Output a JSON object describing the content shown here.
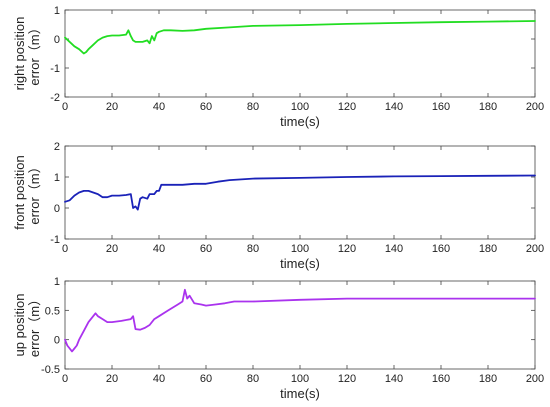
{
  "chart_data": [
    {
      "type": "line",
      "xlabel": "time(s)",
      "ylabel_lines": [
        "right position",
        "error（m）"
      ],
      "xlim": [
        0,
        200
      ],
      "ylim": [
        -2,
        1
      ],
      "xticks": [
        0,
        20,
        40,
        60,
        80,
        100,
        120,
        140,
        160,
        180,
        200
      ],
      "yticks": [
        -2,
        -1,
        0,
        1
      ],
      "grid": false,
      "series": [
        {
          "color": "#22dd22",
          "points": [
            [
              0,
              0.05
            ],
            [
              2,
              -0.1
            ],
            [
              4,
              -0.25
            ],
            [
              6,
              -0.35
            ],
            [
              8,
              -0.5
            ],
            [
              9,
              -0.45
            ],
            [
              10,
              -0.35
            ],
            [
              12,
              -0.2
            ],
            [
              14,
              -0.05
            ],
            [
              16,
              0.05
            ],
            [
              18,
              0.1
            ],
            [
              20,
              0.12
            ],
            [
              23,
              0.12
            ],
            [
              26,
              0.15
            ],
            [
              27,
              0.3
            ],
            [
              28,
              0.1
            ],
            [
              29,
              -0.05
            ],
            [
              30,
              -0.1
            ],
            [
              33,
              -0.1
            ],
            [
              35,
              -0.05
            ],
            [
              36,
              -0.15
            ],
            [
              37,
              0.1
            ],
            [
              38,
              -0.05
            ],
            [
              39,
              0.2
            ],
            [
              40,
              0.25
            ],
            [
              42,
              0.3
            ],
            [
              45,
              0.3
            ],
            [
              50,
              0.28
            ],
            [
              55,
              0.3
            ],
            [
              60,
              0.35
            ],
            [
              70,
              0.4
            ],
            [
              80,
              0.45
            ],
            [
              100,
              0.48
            ],
            [
              120,
              0.52
            ],
            [
              140,
              0.55
            ],
            [
              160,
              0.58
            ],
            [
              180,
              0.6
            ],
            [
              200,
              0.62
            ]
          ]
        }
      ]
    },
    {
      "type": "line",
      "xlabel": "time(s)",
      "ylabel_lines": [
        "front position",
        "error（m）"
      ],
      "xlim": [
        0,
        200
      ],
      "ylim": [
        -1,
        2
      ],
      "xticks": [
        0,
        20,
        40,
        60,
        80,
        100,
        120,
        140,
        160,
        180,
        200
      ],
      "yticks": [
        -1,
        0,
        1,
        2
      ],
      "grid": false,
      "series": [
        {
          "color": "#1a22b8",
          "points": [
            [
              0,
              0.2
            ],
            [
              2,
              0.25
            ],
            [
              4,
              0.4
            ],
            [
              6,
              0.5
            ],
            [
              8,
              0.55
            ],
            [
              10,
              0.55
            ],
            [
              12,
              0.5
            ],
            [
              14,
              0.45
            ],
            [
              16,
              0.35
            ],
            [
              18,
              0.35
            ],
            [
              20,
              0.4
            ],
            [
              23,
              0.4
            ],
            [
              26,
              0.42
            ],
            [
              28,
              0.45
            ],
            [
              29,
              0.0
            ],
            [
              30,
              0.05
            ],
            [
              31,
              -0.05
            ],
            [
              32,
              0.3
            ],
            [
              33,
              0.35
            ],
            [
              35,
              0.3
            ],
            [
              36,
              0.45
            ],
            [
              38,
              0.45
            ],
            [
              39,
              0.55
            ],
            [
              40,
              0.55
            ],
            [
              41,
              0.75
            ],
            [
              44,
              0.75
            ],
            [
              50,
              0.75
            ],
            [
              55,
              0.78
            ],
            [
              60,
              0.78
            ],
            [
              65,
              0.85
            ],
            [
              70,
              0.9
            ],
            [
              80,
              0.95
            ],
            [
              100,
              0.97
            ],
            [
              120,
              1.0
            ],
            [
              140,
              1.02
            ],
            [
              160,
              1.03
            ],
            [
              180,
              1.04
            ],
            [
              200,
              1.05
            ]
          ]
        }
      ]
    },
    {
      "type": "line",
      "xlabel": "time(s)",
      "ylabel_lines": [
        "up position",
        "error（m）"
      ],
      "xlim": [
        0,
        200
      ],
      "ylim": [
        -0.5,
        1
      ],
      "xticks": [
        0,
        20,
        40,
        60,
        80,
        100,
        120,
        140,
        160,
        180,
        200
      ],
      "yticks": [
        -0.5,
        0,
        0.5,
        1
      ],
      "grid": false,
      "series": [
        {
          "color": "#aa33ee",
          "points": [
            [
              0,
              0.0
            ],
            [
              1,
              -0.1
            ],
            [
              2,
              -0.15
            ],
            [
              3,
              -0.2
            ],
            [
              4,
              -0.15
            ],
            [
              5,
              -0.1
            ],
            [
              6,
              0.0
            ],
            [
              8,
              0.15
            ],
            [
              10,
              0.3
            ],
            [
              12,
              0.4
            ],
            [
              13,
              0.45
            ],
            [
              14,
              0.4
            ],
            [
              16,
              0.35
            ],
            [
              18,
              0.3
            ],
            [
              20,
              0.3
            ],
            [
              24,
              0.32
            ],
            [
              28,
              0.35
            ],
            [
              29,
              0.4
            ],
            [
              30,
              0.18
            ],
            [
              32,
              0.17
            ],
            [
              34,
              0.2
            ],
            [
              36,
              0.25
            ],
            [
              38,
              0.35
            ],
            [
              40,
              0.4
            ],
            [
              44,
              0.5
            ],
            [
              48,
              0.6
            ],
            [
              50,
              0.65
            ],
            [
              51,
              0.85
            ],
            [
              52,
              0.7
            ],
            [
              53,
              0.75
            ],
            [
              55,
              0.62
            ],
            [
              58,
              0.6
            ],
            [
              60,
              0.58
            ],
            [
              64,
              0.6
            ],
            [
              68,
              0.62
            ],
            [
              72,
              0.65
            ],
            [
              80,
              0.65
            ],
            [
              100,
              0.68
            ],
            [
              120,
              0.7
            ],
            [
              140,
              0.7
            ],
            [
              160,
              0.7
            ],
            [
              180,
              0.7
            ],
            [
              200,
              0.7
            ]
          ]
        }
      ]
    }
  ]
}
